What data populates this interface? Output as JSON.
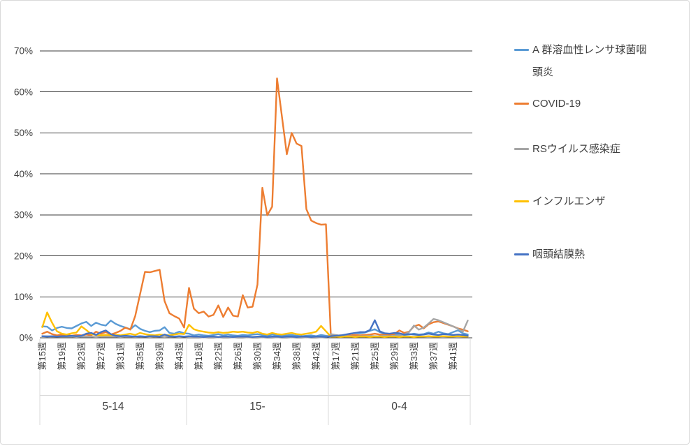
{
  "chart_data": {
    "type": "line",
    "title": "",
    "legend_position": "right",
    "grid": "horizontal",
    "ylim": [
      0,
      70
    ],
    "y_axis": {
      "unit": "%",
      "tick_labels": [
        "0%",
        "10%",
        "20%",
        "30%",
        "40%",
        "50%",
        "60%",
        "70%"
      ]
    },
    "x_axis": {
      "tick_prefix": "第",
      "tick_suffix": "週",
      "tick_interval": 4,
      "visible_tick_labels": [
        "第15週",
        "第19週",
        "第23週",
        "第27週",
        "第31週",
        "第35週",
        "第39週",
        "第43週",
        "第18週",
        "第22週",
        "第26週",
        "第30週",
        "第34週",
        "第38週",
        "第42週",
        "第17週",
        "第21週",
        "第25週",
        "第29週",
        "第33週",
        "第37週",
        "第41週"
      ]
    },
    "groups": [
      {
        "label": "5-14",
        "weeks": [
          15,
          16,
          17,
          18,
          19,
          20,
          21,
          22,
          23,
          24,
          25,
          26,
          27,
          28,
          29,
          30,
          31,
          32,
          33,
          34,
          35,
          36,
          37,
          38,
          39,
          40,
          41,
          42,
          43,
          44
        ]
      },
      {
        "label": "15-",
        "weeks": [
          16,
          17,
          18,
          19,
          20,
          21,
          22,
          23,
          24,
          25,
          26,
          27,
          28,
          29,
          30,
          31,
          32,
          33,
          34,
          35,
          36,
          37,
          38,
          39,
          40,
          41,
          42,
          43,
          44
        ]
      },
      {
        "label": "0-4",
        "weeks": [
          16,
          17,
          18,
          19,
          20,
          21,
          22,
          23,
          24,
          25,
          26,
          27,
          28,
          29,
          30,
          31,
          32,
          33,
          34,
          35,
          36,
          37,
          38,
          39,
          40,
          41,
          42,
          43,
          44
        ]
      }
    ],
    "series": [
      {
        "name": "A 群溶血性レンサ球菌咽頭炎",
        "color": "#5B9BD5",
        "values": [
          [
            2.8,
            2.7,
            1.8,
            2.4,
            2.7,
            2.4,
            2.3,
            2.9,
            3.5,
            3.9,
            2.9,
            3.7,
            3.2,
            3.0,
            4.2,
            3.4,
            2.9,
            2.5,
            2.1,
            3.1,
            2.2,
            1.7,
            1.4,
            1.7,
            1.8,
            2.6,
            1.2,
            1.0,
            1.5,
            1.1
          ],
          [
            1.0,
            0.6,
            0.8,
            0.6,
            0.5,
            0.7,
            0.9,
            0.6,
            0.8,
            0.6,
            0.5,
            0.7,
            0.6,
            0.8,
            0.9,
            0.7,
            0.5,
            0.8,
            0.6,
            0.5,
            0.6,
            0.7,
            0.5,
            0.4,
            0.5,
            0.6,
            0.4,
            0.7,
            0.5
          ],
          [
            0.5,
            0.6,
            0.5,
            0.7,
            1.0,
            1.2,
            1.1,
            1.3,
            1.7,
            2.1,
            1.4,
            1.0,
            0.8,
            0.9,
            0.8,
            0.7,
            0.8,
            1.0,
            0.8,
            0.9,
            1.3,
            1.0,
            1.5,
            1.1,
            0.9,
            1.4,
            1.8,
            1.1,
            0.8
          ]
        ]
      },
      {
        "name": "COVID-19",
        "color": "#ED7D31",
        "values": [
          [
            1.0,
            1.5,
            0.9,
            0.6,
            0.8,
            0.7,
            0.5,
            0.7,
            0.6,
            0.8,
            0.6,
            1.5,
            1.0,
            1.4,
            0.8,
            1.2,
            1.7,
            2.5,
            2.0,
            5.3,
            10.7,
            16.1,
            16.0,
            16.3,
            16.6,
            9.0,
            6.0,
            5.3,
            4.7,
            2.5
          ],
          [
            12.2,
            7.1,
            6.0,
            6.4,
            5.2,
            5.6,
            7.9,
            5.1,
            7.4,
            5.4,
            5.2,
            10.4,
            7.4,
            7.6,
            13.0,
            36.6,
            29.9,
            32.0,
            63.3,
            54.0,
            44.8,
            50.0,
            47.4,
            46.8,
            31.4,
            28.6,
            28.0,
            27.6,
            27.7
          ],
          [
            0.6,
            0.5,
            0.6,
            0.5,
            0.6,
            0.7,
            0.6,
            0.7,
            0.8,
            1.0,
            0.8,
            0.7,
            0.8,
            0.9,
            1.8,
            1.2,
            1.5,
            2.8,
            3.2,
            2.3,
            3.3,
            3.8,
            4.0,
            3.6,
            3.2,
            2.8,
            2.3,
            2.0,
            1.6
          ]
        ]
      },
      {
        "name": "RSウイルス感染症",
        "color": "#A5A5A5",
        "values": [
          [
            0.4,
            0.4,
            0.3,
            0.3,
            0.3,
            0.3,
            0.3,
            0.2,
            0.3,
            0.3,
            0.3,
            0.2,
            0.3,
            0.3,
            0.3,
            0.3,
            0.2,
            0.3,
            0.3,
            0.2,
            0.3,
            0.3,
            0.2,
            0.3,
            0.3,
            0.2,
            0.3,
            0.3,
            0.2,
            0.3
          ],
          [
            0.2,
            0.2,
            0.2,
            0.1,
            0.2,
            0.2,
            0.1,
            0.2,
            0.2,
            0.1,
            0.2,
            0.2,
            0.1,
            0.2,
            0.2,
            0.1,
            0.2,
            0.2,
            0.1,
            0.2,
            0.2,
            0.1,
            0.2,
            0.2,
            0.1,
            0.2,
            0.2,
            0.1,
            0.2
          ],
          [
            0.9,
            0.7,
            0.5,
            0.4,
            0.4,
            0.3,
            0.4,
            0.4,
            0.5,
            0.4,
            0.4,
            0.5,
            0.4,
            0.5,
            0.6,
            0.8,
            1.4,
            3.0,
            2.0,
            2.5,
            3.5,
            4.6,
            4.3,
            3.8,
            3.3,
            2.8,
            2.2,
            1.5,
            4.2
          ]
        ]
      },
      {
        "name": "インフルエンザ",
        "color": "#FFC000",
        "values": [
          [
            2.6,
            6.2,
            3.7,
            1.6,
            1.0,
            0.8,
            1.1,
            1.3,
            2.8,
            1.9,
            0.9,
            0.7,
            0.6,
            0.7,
            0.6,
            0.7,
            0.6,
            0.8,
            1.0,
            0.7,
            1.2,
            0.9,
            0.7,
            0.6,
            0.8,
            0.7,
            0.6,
            0.8,
            1.0,
            0.9
          ],
          [
            3.2,
            2.1,
            1.7,
            1.5,
            1.3,
            1.2,
            1.4,
            1.2,
            1.3,
            1.5,
            1.4,
            1.5,
            1.3,
            1.2,
            1.5,
            1.0,
            0.8,
            1.2,
            0.9,
            0.8,
            1.0,
            1.2,
            0.9,
            0.8,
            1.0,
            1.2,
            1.5,
            2.9,
            1.6
          ],
          [
            0.3,
            0.3,
            0.2,
            0.3,
            0.3,
            0.2,
            0.3,
            0.3,
            0.2,
            0.3,
            0.3,
            0.2,
            0.3,
            0.3,
            0.2,
            0.3,
            0.3,
            0.2,
            0.3,
            0.3,
            0.4,
            0.3,
            0.3,
            0.4,
            0.3,
            0.3,
            0.4,
            0.3,
            0.3
          ]
        ]
      },
      {
        "name": "咽頭結膜熱",
        "color": "#4472C4",
        "values": [
          [
            0.4,
            0.3,
            0.4,
            0.3,
            0.4,
            0.4,
            0.5,
            0.4,
            0.5,
            1.0,
            1.2,
            0.7,
            1.4,
            1.8,
            0.9,
            0.5,
            0.4,
            0.5,
            0.4,
            0.3,
            0.4,
            0.3,
            0.4,
            0.4,
            0.3,
            0.8,
            0.4,
            0.3,
            0.4,
            0.3
          ],
          [
            0.4,
            0.3,
            0.3,
            0.2,
            0.3,
            0.3,
            0.2,
            0.3,
            0.3,
            0.2,
            0.3,
            0.3,
            0.3,
            0.2,
            0.3,
            0.3,
            0.2,
            0.3,
            0.3,
            0.2,
            0.3,
            0.3,
            0.2,
            0.3,
            0.3,
            0.2,
            0.3,
            0.3,
            0.2
          ],
          [
            0.4,
            0.5,
            0.6,
            0.8,
            1.0,
            1.2,
            1.4,
            1.4,
            1.9,
            4.3,
            1.6,
            1.1,
            1.0,
            1.2,
            1.1,
            0.8,
            0.9,
            0.8,
            0.7,
            0.8,
            1.0,
            0.8,
            0.7,
            0.9,
            0.8,
            0.7,
            0.8,
            0.7,
            0.5
          ]
        ]
      }
    ]
  }
}
